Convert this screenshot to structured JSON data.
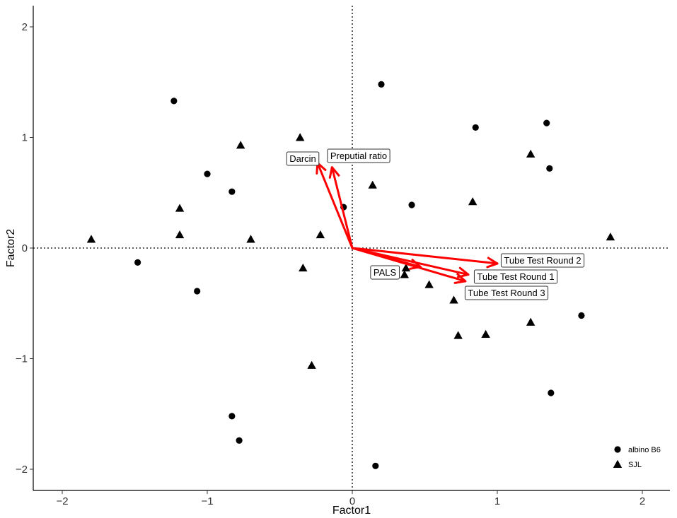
{
  "chart_data": {
    "type": "scatter",
    "title": "",
    "xlabel": "Factor1",
    "ylabel": "Factor2",
    "xlim": [
      -2.2,
      2.2
    ],
    "ylim": [
      -2.2,
      2.2
    ],
    "xticks": [
      -2,
      -1,
      0,
      1,
      2
    ],
    "yticks": [
      -2,
      -1,
      0,
      1,
      2
    ],
    "xtick_labels": [
      "−2",
      "−1",
      "0",
      "1",
      "2"
    ],
    "ytick_labels": [
      "−2",
      "−1",
      "0",
      "1",
      "2"
    ],
    "reference_lines": {
      "x": 0,
      "y": 0,
      "style": "dotted"
    },
    "grid": false,
    "legend_position": "bottom-right",
    "series": [
      {
        "name": "albino B6",
        "marker": "circle",
        "color": "#000000",
        "points": [
          [
            -1.23,
            1.33
          ],
          [
            0.2,
            1.48
          ],
          [
            0.85,
            1.09
          ],
          [
            1.34,
            1.13
          ],
          [
            1.36,
            0.72
          ],
          [
            -1.0,
            0.67
          ],
          [
            -0.83,
            0.51
          ],
          [
            -0.06,
            0.37
          ],
          [
            0.41,
            0.39
          ],
          [
            -1.48,
            -0.13
          ],
          [
            -1.07,
            -0.39
          ],
          [
            1.58,
            -0.61
          ],
          [
            1.37,
            -1.31
          ],
          [
            -0.83,
            -1.52
          ],
          [
            -0.78,
            -1.74
          ],
          [
            0.16,
            -1.97
          ]
        ]
      },
      {
        "name": "SJL",
        "marker": "triangle",
        "color": "#000000",
        "points": [
          [
            -0.36,
            1.0
          ],
          [
            -0.77,
            0.93
          ],
          [
            1.23,
            0.85
          ],
          [
            0.14,
            0.57
          ],
          [
            0.83,
            0.42
          ],
          [
            -1.19,
            0.36
          ],
          [
            -1.19,
            0.12
          ],
          [
            -0.22,
            0.12
          ],
          [
            -0.7,
            0.08
          ],
          [
            -1.8,
            0.08
          ],
          [
            1.78,
            0.1
          ],
          [
            -0.34,
            -0.18
          ],
          [
            0.37,
            -0.18
          ],
          [
            0.36,
            -0.24
          ],
          [
            0.53,
            -0.33
          ],
          [
            0.7,
            -0.47
          ],
          [
            0.73,
            -0.79
          ],
          [
            0.92,
            -0.78
          ],
          [
            1.23,
            -0.67
          ],
          [
            -0.28,
            -1.06
          ]
        ]
      }
    ],
    "vectors": {
      "color": "#ff0000",
      "items": [
        {
          "label": "Darcin",
          "x": -0.24,
          "y": 0.77
        },
        {
          "label": "Preputial ratio",
          "x": -0.14,
          "y": 0.73
        },
        {
          "label": "PALS",
          "x": 0.47,
          "y": -0.17
        },
        {
          "label": "Tube Test Round 2",
          "x": 1.0,
          "y": -0.14
        },
        {
          "label": "Tube Test Round 1",
          "x": 0.8,
          "y": -0.24
        },
        {
          "label": "Tube Test Round 3",
          "x": 0.78,
          "y": -0.3
        }
      ]
    }
  }
}
